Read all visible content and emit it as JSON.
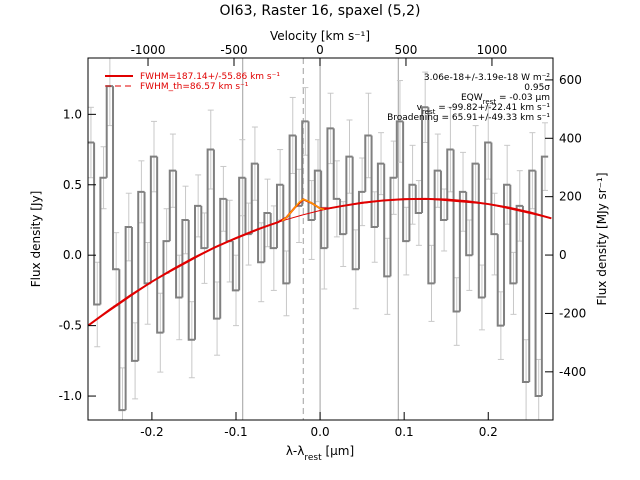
{
  "chart_data": {
    "type": "step",
    "title": "OI63, Raster 16, spaxel (5,2)",
    "xlabel": [
      "λ-λ",
      "rest",
      " [µm]"
    ],
    "ylabel": "Flux density [Jy]",
    "x2label": "Velocity [km s⁻¹]",
    "y2label": "Flux density [MJy sr⁻¹]",
    "xlim": [
      -0.276,
      0.277
    ],
    "ylim": [
      -1.17,
      1.4
    ],
    "x2lim": [
      -1349,
      1355
    ],
    "y2lim": [
      -565,
      675
    ],
    "xticks": [
      {
        "value": -0.2,
        "label": "-0.2"
      },
      {
        "value": -0.1,
        "label": "-0.1"
      },
      {
        "value": 0,
        "label": "0.0"
      },
      {
        "value": 0.1,
        "label": "0.1"
      },
      {
        "value": 0.2,
        "label": "0.2"
      }
    ],
    "yticks": [
      {
        "value": -1,
        "label": "-1.0"
      },
      {
        "value": -0.5,
        "label": "-0.5"
      },
      {
        "value": 0,
        "label": "0.0"
      },
      {
        "value": 0.5,
        "label": "0.5"
      },
      {
        "value": 1,
        "label": "1.0"
      }
    ],
    "x2ticks": [
      -1000,
      -500,
      0,
      500,
      1000
    ],
    "y2ticks": [
      -400,
      -200,
      0,
      200,
      400,
      600
    ],
    "vlines": [
      -0.092,
      0,
      0.093
    ],
    "line_center": -0.02,
    "data": {
      "color": "#808080",
      "error_color": "#c8c8c8",
      "x": [
        -0.2725,
        -0.265,
        -0.2575,
        -0.25,
        -0.2425,
        -0.235,
        -0.2275,
        -0.22,
        -0.2125,
        -0.205,
        -0.1975,
        -0.19,
        -0.1825,
        -0.175,
        -0.1675,
        -0.16,
        -0.1525,
        -0.145,
        -0.1375,
        -0.13,
        -0.1225,
        -0.115,
        -0.1075,
        -0.1,
        -0.0925,
        -0.085,
        -0.0775,
        -0.07,
        -0.0625,
        -0.055,
        -0.0475,
        -0.04,
        -0.0325,
        -0.025,
        -0.0175,
        -0.01,
        -0.0025,
        0.005,
        0.0125,
        0.02,
        0.0275,
        0.035,
        0.0425,
        0.05,
        0.0575,
        0.065,
        0.0725,
        0.08,
        0.0875,
        0.095,
        0.1025,
        0.11,
        0.1175,
        0.125,
        0.1325,
        0.14,
        0.1475,
        0.155,
        0.1625,
        0.17,
        0.1775,
        0.185,
        0.1925,
        0.2,
        0.2075,
        0.215,
        0.2225,
        0.23,
        0.2375,
        0.245,
        0.2525,
        0.26,
        0.2675
      ],
      "values": [
        0.8,
        -0.35,
        0.55,
        1.2,
        -0.1,
        -1.1,
        0.2,
        -0.75,
        0.45,
        -0.2,
        0.7,
        -0.55,
        0.1,
        0.6,
        -0.3,
        0.25,
        -0.6,
        0.35,
        0.05,
        0.75,
        -0.45,
        0.4,
        0.1,
        -0.25,
        0.55,
        0.15,
        0.65,
        -0.05,
        0.3,
        0.05,
        0.5,
        -0.2,
        0.85,
        0.35,
        0.95,
        0.25,
        0.6,
        0.05,
        0.9,
        0.4,
        0.15,
        0.7,
        -0.1,
        0.45,
        0.85,
        0.2,
        0.65,
        -0.15,
        0.55,
        0.95,
        0.1,
        0.5,
        0.3,
        1.05,
        -0.2,
        0.6,
        0.25,
        0.75,
        -0.4,
        0.45,
        0,
        0.65,
        -0.3,
        0.8,
        0.15,
        -0.5,
        0.5,
        -0.2,
        0.35,
        -0.9,
        0.6,
        -1,
        0.7
      ],
      "errors": [
        0.25,
        0.3,
        0.22,
        0.28,
        0.26,
        0.3,
        0.24,
        0.27,
        0.22,
        0.29,
        0.25,
        0.28,
        0.23,
        0.26,
        0.3,
        0.24,
        0.27,
        0.22,
        0.25,
        0.28,
        0.26,
        0.23,
        0.29,
        0.25,
        0.27,
        0.22,
        0.26,
        0.28,
        0.24,
        0.3,
        0.25,
        0.23,
        0.27,
        0.26,
        0.24,
        0.28,
        0.22,
        0.29,
        0.25,
        0.27,
        0.23,
        0.26,
        0.28,
        0.24,
        0.3,
        0.25,
        0.22,
        0.27,
        0.26,
        0.29,
        0.24,
        0.28,
        0.23,
        0.25,
        0.27,
        0.26,
        0.22,
        0.3,
        0.24,
        0.28,
        0.25,
        0.27,
        0.23,
        0.26,
        0.29,
        0.24,
        0.28,
        0.22,
        0.25,
        0.3,
        0.27,
        0.26,
        0.24
      ]
    },
    "series": [
      {
        "name": "FWHM=187.14+/-55.86 km s⁻¹",
        "color": "#e00000",
        "dash": false,
        "x": [
          -0.275,
          -0.25,
          -0.225,
          -0.2,
          -0.175,
          -0.15,
          -0.125,
          -0.1,
          -0.075,
          -0.06,
          -0.05,
          -0.04,
          -0.03,
          -0.02,
          -0.01,
          0,
          0.01,
          0.025,
          0.05,
          0.075,
          0.1,
          0.125,
          0.15,
          0.175,
          0.2,
          0.225,
          0.25,
          0.275
        ],
        "values": [
          -0.496,
          -0.386,
          -0.283,
          -0.188,
          -0.1,
          -0.018,
          0.056,
          0.122,
          0.182,
          0.214,
          0.234,
          0.268,
          0.338,
          0.397,
          0.37,
          0.332,
          0.332,
          0.348,
          0.372,
          0.388,
          0.398,
          0.4,
          0.395,
          0.383,
          0.363,
          0.337,
          0.303,
          0.262
        ]
      },
      {
        "name": "FWHM_th=86.57 km s⁻¹",
        "color": "#e00000",
        "dash": true,
        "x": [
          -0.275,
          -0.2,
          -0.125,
          -0.06,
          -0.04,
          -0.02,
          0,
          0.025,
          0.075,
          0.125,
          0.2,
          0.275
        ],
        "values": [
          -0.496,
          -0.188,
          0.056,
          0.214,
          0.253,
          0.287,
          0.317,
          0.348,
          0.388,
          0.4,
          0.363,
          0.262
        ]
      }
    ],
    "line_fit": {
      "color": "#ff9900",
      "x": [
        -0.045,
        -0.04,
        -0.03,
        -0.025,
        -0.02,
        -0.015,
        -0.01,
        0,
        0.005
      ],
      "values": [
        0.245,
        0.268,
        0.338,
        0.375,
        0.397,
        0.385,
        0.37,
        0.332,
        0.325
      ]
    },
    "annotations": [
      [
        "3.06e-18+/-3.19e-18 W m⁻²"
      ],
      [
        "0.95σ"
      ],
      [
        "EQW",
        "rest",
        " = -0.03 µm"
      ],
      [
        "v",
        "rest",
        " = -99.82+/-22.41 km s⁻¹"
      ],
      [
        "Broadening = 65.91+/-49.33 km s⁻¹"
      ]
    ]
  }
}
